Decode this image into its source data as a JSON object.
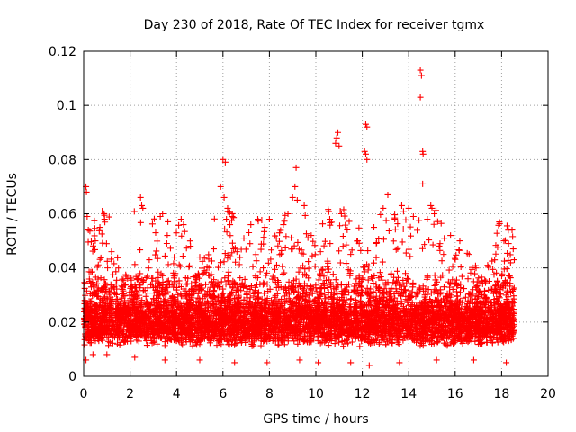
{
  "chart_data": {
    "type": "scatter",
    "title": "Day 230 of 2018, Rate Of TEC Index for receiver tgmx",
    "xlabel": "GPS time / hours",
    "ylabel": "ROTI / TECUs",
    "xlim": [
      0,
      20
    ],
    "ylim": [
      0,
      0.12
    ],
    "xticks": [
      0,
      2,
      4,
      6,
      8,
      10,
      12,
      14,
      16,
      18,
      20
    ],
    "yticks": [
      0,
      0.02,
      0.04,
      0.06,
      0.08,
      0.1,
      0.12
    ],
    "xtick_labels": [
      "0",
      "2",
      "4",
      "6",
      "8",
      "10",
      "12",
      "14",
      "16",
      "18",
      "20"
    ],
    "ytick_labels": [
      "0",
      "0.02",
      "0.04",
      "0.06",
      "0.08",
      "0.1",
      "0.12"
    ],
    "grid": true,
    "marker": "plus",
    "series": [
      {
        "name": "ROTI",
        "color": "#ff0000",
        "points": [
          [
            0.1,
            0.07
          ],
          [
            0.12,
            0.068
          ],
          [
            0.15,
            0.059
          ],
          [
            0.2,
            0.054
          ],
          [
            0.5,
            0.05
          ],
          [
            0.8,
            0.061
          ],
          [
            0.9,
            0.058
          ],
          [
            0.7,
            0.055
          ],
          [
            1.2,
            0.046
          ],
          [
            1.5,
            0.04
          ],
          [
            2.0,
            0.028
          ],
          [
            2.3,
            0.036
          ],
          [
            2.45,
            0.066
          ],
          [
            2.5,
            0.063
          ],
          [
            2.55,
            0.062
          ],
          [
            2.8,
            0.04
          ],
          [
            3.1,
            0.053
          ],
          [
            3.3,
            0.059
          ],
          [
            3.4,
            0.06
          ],
          [
            3.6,
            0.052
          ],
          [
            3.9,
            0.044
          ],
          [
            4.2,
            0.058
          ],
          [
            4.3,
            0.056
          ],
          [
            4.6,
            0.048
          ],
          [
            5.0,
            0.044
          ],
          [
            5.2,
            0.039
          ],
          [
            5.6,
            0.047
          ],
          [
            5.9,
            0.07
          ],
          [
            6.0,
            0.08
          ],
          [
            6.05,
            0.066
          ],
          [
            6.1,
            0.079
          ],
          [
            6.15,
            0.058
          ],
          [
            6.2,
            0.062
          ],
          [
            6.3,
            0.056
          ],
          [
            6.6,
            0.046
          ],
          [
            6.9,
            0.051
          ],
          [
            7.2,
            0.056
          ],
          [
            7.5,
            0.058
          ],
          [
            7.8,
            0.055
          ],
          [
            8.0,
            0.058
          ],
          [
            8.3,
            0.051
          ],
          [
            8.6,
            0.056
          ],
          [
            8.8,
            0.06
          ],
          [
            9.0,
            0.066
          ],
          [
            9.1,
            0.07
          ],
          [
            9.15,
            0.077
          ],
          [
            9.2,
            0.065
          ],
          [
            9.5,
            0.063
          ],
          [
            9.8,
            0.052
          ],
          [
            10.2,
            0.046
          ],
          [
            10.6,
            0.058
          ],
          [
            10.85,
            0.086
          ],
          [
            10.9,
            0.088
          ],
          [
            10.95,
            0.09
          ],
          [
            11.0,
            0.085
          ],
          [
            11.05,
            0.061
          ],
          [
            11.1,
            0.06
          ],
          [
            11.5,
            0.045
          ],
          [
            11.8,
            0.05
          ],
          [
            12.1,
            0.083
          ],
          [
            12.15,
            0.082
          ],
          [
            12.2,
            0.08
          ],
          [
            12.15,
            0.093
          ],
          [
            12.2,
            0.092
          ],
          [
            12.5,
            0.055
          ],
          [
            12.9,
            0.062
          ],
          [
            13.1,
            0.067
          ],
          [
            13.4,
            0.058
          ],
          [
            13.7,
            0.063
          ],
          [
            14.0,
            0.062
          ],
          [
            14.2,
            0.059
          ],
          [
            14.5,
            0.113
          ],
          [
            14.55,
            0.111
          ],
          [
            14.5,
            0.103
          ],
          [
            14.6,
            0.083
          ],
          [
            14.62,
            0.082
          ],
          [
            14.6,
            0.071
          ],
          [
            14.8,
            0.058
          ],
          [
            14.95,
            0.063
          ],
          [
            15.0,
            0.062
          ],
          [
            15.1,
            0.06
          ],
          [
            15.5,
            0.045
          ],
          [
            15.8,
            0.052
          ],
          [
            16.2,
            0.05
          ],
          [
            16.6,
            0.045
          ],
          [
            16.9,
            0.04
          ],
          [
            17.4,
            0.041
          ],
          [
            17.7,
            0.043
          ],
          [
            17.9,
            0.057
          ],
          [
            18.1,
            0.05
          ],
          [
            18.3,
            0.049
          ],
          [
            18.45,
            0.054
          ],
          [
            18.5,
            0.047
          ],
          [
            0.1,
            0.006
          ],
          [
            0.4,
            0.008
          ],
          [
            1.0,
            0.008
          ],
          [
            2.2,
            0.007
          ],
          [
            3.5,
            0.006
          ],
          [
            5.0,
            0.006
          ],
          [
            6.5,
            0.005
          ],
          [
            7.9,
            0.005
          ],
          [
            9.3,
            0.006
          ],
          [
            10.1,
            0.005
          ],
          [
            11.5,
            0.005
          ],
          [
            12.3,
            0.004
          ],
          [
            13.6,
            0.005
          ],
          [
            15.2,
            0.006
          ],
          [
            16.8,
            0.006
          ],
          [
            18.2,
            0.005
          ]
        ]
      }
    ]
  }
}
